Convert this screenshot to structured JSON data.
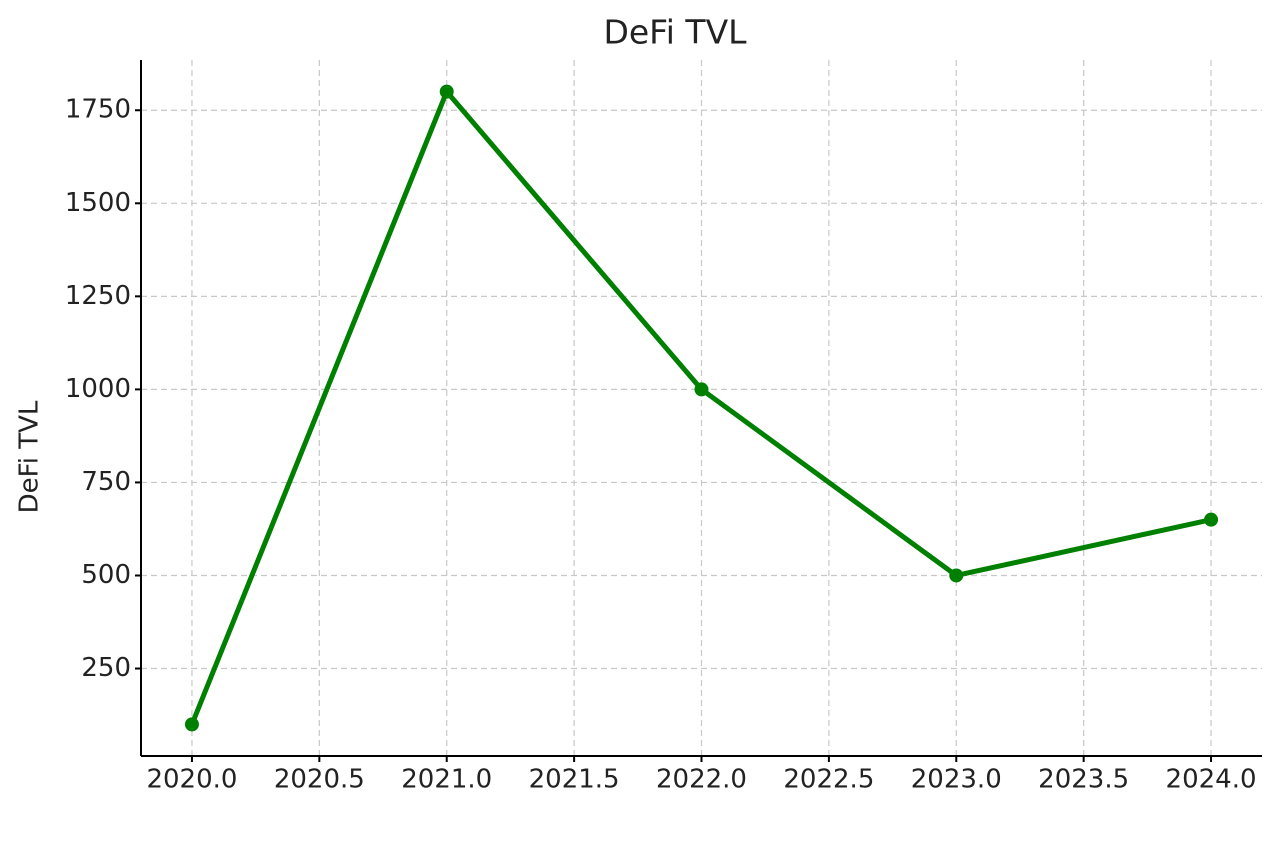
{
  "chart_data": {
    "type": "line",
    "title": "DeFi TVL",
    "y_label": "DeFi TVL",
    "x": [
      2020,
      2021,
      2022,
      2023,
      2024
    ],
    "series": [
      {
        "name": "DeFi TVL",
        "color": "#008000",
        "values": [
          100,
          1800,
          1000,
          500,
          650
        ]
      }
    ],
    "xlim": [
      2019.8,
      2024.2
    ],
    "xticks": [
      {
        "value": 2020,
        "label": "2020.0"
      },
      2020.5,
      {
        "value": 2021,
        "label": "2021.0"
      },
      2021.5,
      {
        "value": 2022,
        "label": "2022.0"
      },
      2022.5,
      {
        "value": 2023,
        "label": "2023.0"
      },
      2023.5,
      {
        "value": 2024,
        "label": "2024.0"
      }
    ],
    "ylim": [
      15,
      1885
    ],
    "yticks": [
      250,
      500,
      750,
      1000,
      1250,
      1500,
      1750
    ],
    "grid": true
  }
}
